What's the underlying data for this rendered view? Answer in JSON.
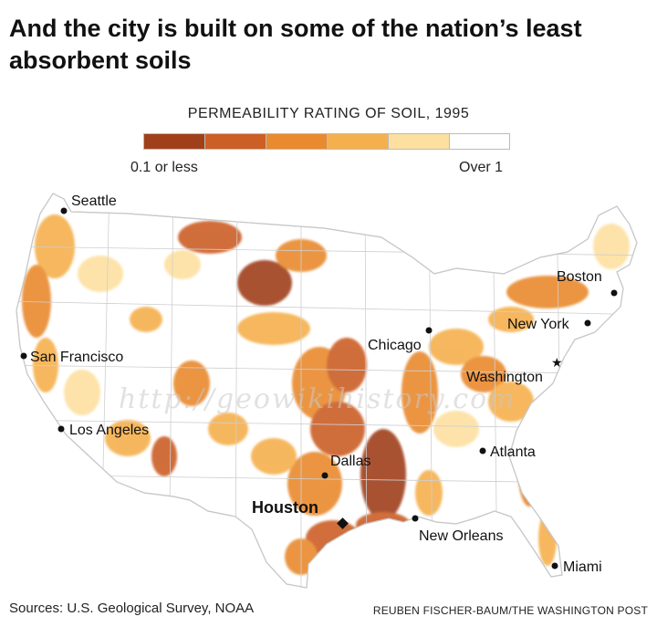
{
  "title": "And the city is built on some of the nation’s least absorbent soils",
  "legend": {
    "title": "PERMEABILITY RATING OF SOIL, 1995",
    "low_label": "0.1 or less",
    "high_label": "Over 1",
    "colors": [
      "#a0401a",
      "#cc5f25",
      "#e98a2e",
      "#f5b04e",
      "#fde0a0",
      "#ffffff"
    ]
  },
  "cities": [
    {
      "name": "Seattle",
      "marker": "dot"
    },
    {
      "name": "San Francisco",
      "marker": "dot"
    },
    {
      "name": "Los Angeles",
      "marker": "dot"
    },
    {
      "name": "Dallas",
      "marker": "dot"
    },
    {
      "name": "Houston",
      "marker": "diamond"
    },
    {
      "name": "New Orleans",
      "marker": "dot"
    },
    {
      "name": "Chicago",
      "marker": "dot"
    },
    {
      "name": "Atlanta",
      "marker": "dot"
    },
    {
      "name": "Washington",
      "marker": "star"
    },
    {
      "name": "New York",
      "marker": "dot"
    },
    {
      "name": "Boston",
      "marker": "dot"
    },
    {
      "name": "Miami",
      "marker": "dot"
    }
  ],
  "watermark": "http://geowikihistory.com",
  "sources": "Sources: U.S. Geological Survey, NOAA",
  "credit": "REUBEN FISCHER-BAUM/THE WASHINGTON POST"
}
